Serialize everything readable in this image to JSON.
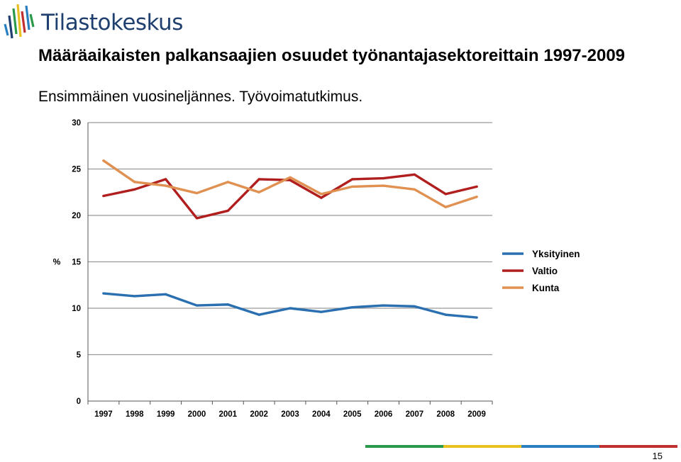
{
  "header": {
    "logo_text": "Tilastokeskus",
    "title": "Määräaikaisten palkansaajien osuudet työnantajasektoreittain 1997-2009",
    "subtitle": "Ensimmäinen vuosineljännes. Työvoimatutkimus."
  },
  "footer": {
    "page_number": "15",
    "bar_colors": [
      "#2a9a4a",
      "#e8c020",
      "#2a7fc0",
      "#c03030"
    ]
  },
  "chart_data": {
    "type": "line",
    "title": "",
    "xlabel": "",
    "ylabel": "%",
    "ylim": [
      0,
      30
    ],
    "yticks": [
      0,
      5,
      10,
      15,
      20,
      25,
      30
    ],
    "grid": true,
    "legend_position": "right",
    "x": [
      "1997",
      "1998",
      "1999",
      "2000",
      "2001",
      "2002",
      "2003",
      "2004",
      "2005",
      "2006",
      "2007",
      "2008",
      "2009"
    ],
    "series": [
      {
        "name": "Yksityinen",
        "color": "#2a6fb0",
        "values": [
          11.6,
          11.3,
          11.5,
          10.3,
          10.4,
          9.3,
          10.0,
          9.6,
          10.1,
          10.3,
          10.2,
          9.3,
          9.0
        ]
      },
      {
        "name": "Valtio",
        "color": "#b01e1e",
        "values": [
          22.1,
          22.8,
          23.9,
          19.7,
          20.5,
          23.9,
          23.8,
          21.9,
          23.9,
          24.0,
          24.4,
          22.3,
          23.1
        ]
      },
      {
        "name": "Kunta",
        "color": "#e09050",
        "values": [
          25.9,
          23.6,
          23.2,
          22.4,
          23.6,
          22.5,
          24.1,
          22.3,
          23.1,
          23.2,
          22.8,
          20.9,
          22.0
        ]
      }
    ]
  }
}
